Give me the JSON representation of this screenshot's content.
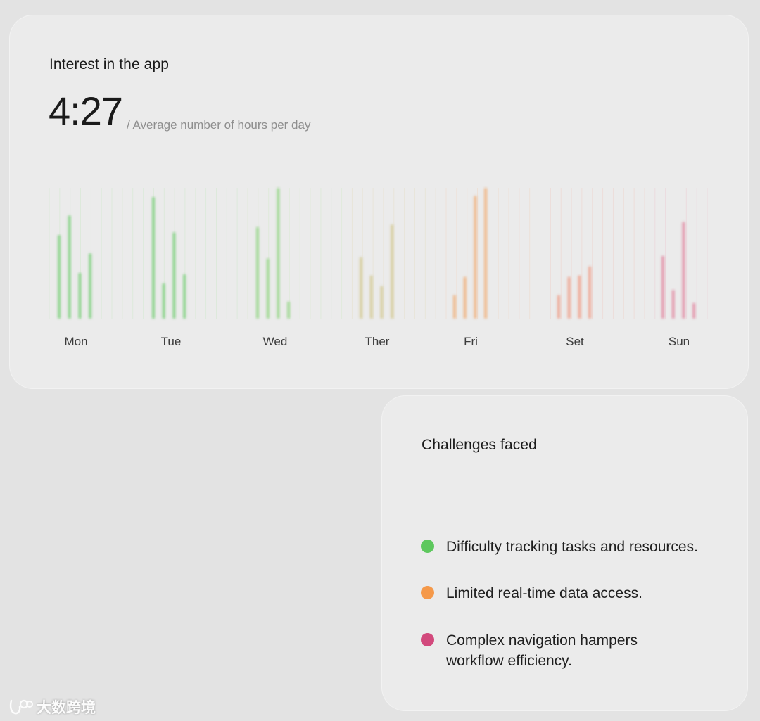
{
  "interest_card": {
    "title": "Interest in the app",
    "big_number": "4:27",
    "caption": "/ Average number of hours per day"
  },
  "challenges_card": {
    "title": "Challenges faced",
    "items": [
      {
        "label": "Difficulty tracking tasks and resources.",
        "color": "#5ec85e"
      },
      {
        "label": "Limited real-time data access.",
        "color": "#f5994a"
      },
      {
        "label": "Complex navigation hampers workflow efficiency.",
        "color": "#d2497c"
      }
    ]
  },
  "chart_data": {
    "type": "bar",
    "categories": [
      "Mon",
      "Tue",
      "Wed",
      "Ther",
      "Fri",
      "Set",
      "Sun"
    ],
    "values": [
      [
        64,
        79,
        35,
        50
      ],
      [
        93,
        27,
        66,
        34
      ],
      [
        70,
        46,
        100,
        13
      ],
      [
        47,
        33,
        25,
        72
      ],
      [
        18,
        32,
        94,
        100
      ],
      [
        18,
        32,
        33,
        40
      ],
      [
        48,
        22,
        74,
        12
      ]
    ],
    "bar_colors": [
      "#8fd48f",
      "#8fd48f",
      "#a3d997",
      "#d7cfa2",
      "#efb98c",
      "#eeaa98",
      "#e39aae"
    ],
    "ylim": [
      0,
      100
    ],
    "grid": true
  },
  "watermark": {
    "text": "大数跨境"
  }
}
